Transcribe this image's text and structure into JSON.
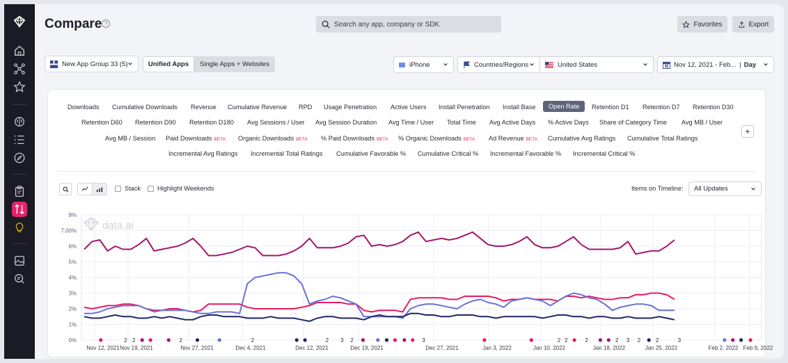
{
  "header": {
    "title": "Compare",
    "search_placeholder": "Search any app, company or SDK",
    "favorites_label": "Favorites",
    "export_label": "Export"
  },
  "filters": {
    "app_group": "New App Group 33 (5)",
    "unified_apps": "Unified Apps",
    "single_apps": "Single Apps + Websites",
    "device": "iPhone",
    "countries_label": "Countries/Regions",
    "country": "United States",
    "date_range": "Nov 12, 2021 - Feb...",
    "granularity": "Day"
  },
  "metrics": {
    "row1": [
      "Downloads",
      "Cumulative Downloads",
      "Revenue",
      "Cumulative Revenue",
      "RPD",
      "Usage Penetration",
      "Active Users",
      "Install Penetration",
      "Install Base",
      "Open Rate",
      "Retention D1",
      "Retention D7",
      "Retention D30"
    ],
    "row2": [
      "Retention D60",
      "Retention D90",
      "Retention D180",
      "Avg Sessions / User",
      "Avg Session Duration",
      "Avg Time / User",
      "Total Time",
      "Avg Active Days",
      "% Active Days",
      "Share of Category Time",
      "Avg MB / User"
    ],
    "row3": [
      "Avg MB / Session",
      "Paid Downloads",
      "Organic Downloads",
      "% Paid Downloads",
      "% Organic Downloads",
      "Ad Revenue",
      "Cumulative Avg Ratings",
      "Cumulative Total Ratings"
    ],
    "row4": [
      "Incremental Avg Ratings",
      "Incremental Total Ratings",
      "Cumulative Favorable %",
      "Cumulative Critical %",
      "Incremental Favorable %",
      "Incremental Critical %"
    ],
    "beta_label": "BETA",
    "active": "Open Rate",
    "plus": "+"
  },
  "toolbar": {
    "stack_label": "Stack",
    "highlight_label": "Highlight Weekends",
    "items_on_timeline_label": "Items on Timeline:",
    "items_on_timeline_value": "All Updates"
  },
  "chart_data": {
    "type": "line",
    "watermark": "data.ai",
    "y_ticks": [
      "0%",
      "1%",
      "2%",
      "3%",
      "4%",
      "5%",
      "6%",
      "7.00%",
      "8%"
    ],
    "ylim": [
      0,
      8
    ],
    "x_labels": [
      "Nov 12, 2021",
      "Nov 19, 2021",
      "Nov 27, 2021",
      "Dec 4, 2021",
      "Dec 12, 2021",
      "Dec 19, 2021",
      "Dec 27, 2021",
      "Jan 3, 2022",
      "Jan 10, 2022",
      "Jan 18, 2022",
      "Jan 25, 2022",
      "Feb 2, 2022",
      "Feb 9, 2022"
    ],
    "colors": {
      "purple": "#a3146e",
      "pink": "#e8195f",
      "blue": "#6671d8",
      "navy": "#1f2566"
    },
    "series": [
      {
        "color": "#a3146e",
        "values": [
          5.8,
          6.3,
          6.4,
          5.7,
          6.0,
          5.8,
          5.8,
          6.1,
          6.5,
          5.7,
          5.8,
          5.9,
          6.0,
          6.2,
          6.5,
          6.0,
          5.4,
          5.4,
          5.5,
          5.6,
          5.8,
          6.0,
          5.9,
          5.4,
          5.4,
          5.4,
          5.5,
          5.7,
          6.0,
          6.5,
          5.9,
          5.9,
          5.9,
          6.0,
          6.2,
          6.6,
          6.7,
          6.0,
          6.1,
          6.0,
          6.1,
          6.3,
          6.7,
          6.9,
          6.3,
          6.4,
          6.5,
          6.4,
          6.5,
          6.7,
          6.9,
          6.5,
          6.1,
          6.0,
          6.0,
          6.1,
          6.3,
          6.6,
          6.1,
          5.9,
          5.9,
          6.0,
          6.3,
          6.6,
          6.1,
          5.8,
          5.8,
          5.8,
          5.8,
          5.9,
          6.3,
          5.5,
          5.6,
          5.7,
          5.7,
          6.0,
          6.4
        ]
      },
      {
        "color": "#e8195f",
        "values": [
          2.1,
          2.0,
          2.1,
          2.2,
          2.2,
          2.3,
          2.3,
          2.2,
          2.0,
          1.9,
          1.9,
          2.0,
          2.0,
          1.9,
          1.8,
          1.9,
          2.3,
          2.3,
          2.3,
          2.3,
          2.3,
          2.1,
          2.0,
          2.0,
          2.0,
          2.0,
          2.0,
          2.0,
          2.1,
          2.2,
          2.4,
          2.4,
          2.4,
          2.4,
          2.3,
          2.3,
          1.9,
          1.8,
          1.9,
          1.9,
          1.9,
          1.8,
          2.6,
          2.7,
          2.7,
          2.7,
          2.7,
          2.6,
          2.6,
          2.8,
          2.8,
          2.8,
          2.8,
          2.7,
          2.5,
          2.6,
          2.6,
          2.7,
          2.6,
          2.6,
          2.6,
          2.5,
          2.8,
          2.8,
          2.7,
          2.8,
          2.7,
          2.6,
          2.6,
          2.7,
          2.7,
          2.9,
          2.9,
          3.0,
          3.0,
          2.9,
          2.6
        ]
      },
      {
        "color": "#6671d8",
        "values": [
          1.7,
          1.7,
          1.8,
          2.0,
          2.1,
          2.2,
          2.2,
          2.2,
          2.0,
          1.8,
          1.9,
          1.9,
          1.9,
          1.9,
          1.8,
          1.7,
          1.7,
          1.8,
          1.8,
          1.8,
          1.7,
          3.6,
          4.0,
          4.1,
          4.2,
          4.3,
          4.3,
          4.1,
          3.6,
          2.3,
          2.5,
          2.6,
          2.8,
          2.7,
          2.5,
          2.3,
          1.5,
          1.5,
          1.5,
          1.5,
          1.5,
          1.4,
          2.0,
          2.2,
          2.3,
          2.3,
          2.2,
          2.1,
          2.0,
          2.3,
          2.5,
          2.6,
          2.4,
          2.3,
          2.1,
          2.5,
          2.6,
          2.7,
          2.6,
          2.5,
          2.2,
          2.5,
          2.8,
          3.0,
          2.9,
          2.7,
          2.6,
          2.3,
          1.9,
          2.1,
          2.2,
          2.3,
          2.3,
          2.2,
          1.9,
          1.9,
          1.9
        ]
      },
      {
        "color": "#1f2566",
        "values": [
          1.5,
          1.4,
          1.4,
          1.5,
          1.6,
          1.5,
          1.5,
          1.4,
          1.4,
          1.5,
          1.4,
          1.5,
          1.4,
          1.3,
          1.3,
          1.5,
          1.6,
          1.6,
          1.5,
          1.5,
          1.5,
          1.4,
          1.4,
          1.4,
          1.5,
          1.4,
          1.4,
          1.4,
          1.3,
          1.2,
          1.4,
          1.5,
          1.5,
          1.4,
          1.4,
          1.4,
          1.3,
          1.5,
          1.6,
          1.5,
          1.5,
          1.5,
          1.7,
          1.7,
          1.6,
          1.6,
          1.5,
          1.5,
          1.6,
          1.6,
          1.6,
          1.5,
          1.5,
          1.4,
          1.5,
          1.5,
          1.5,
          1.5,
          1.5,
          1.4,
          1.5,
          1.6,
          1.6,
          1.5,
          1.5,
          1.4,
          1.5,
          1.5,
          1.4,
          1.4,
          1.5,
          1.4,
          1.4,
          1.4,
          1.5,
          1.4,
          1.3
        ]
      }
    ],
    "markers": [
      {
        "x": 0.035,
        "color": "#e8195f"
      },
      {
        "x": 0.08,
        "text": "2"
      },
      {
        "x": 0.095,
        "text": "2"
      },
      {
        "x": 0.11,
        "color": "#a3146e"
      },
      {
        "x": 0.125,
        "color": "#e8195f"
      },
      {
        "x": 0.158,
        "color": "#a3146e"
      },
      {
        "x": 0.18,
        "text": "2"
      },
      {
        "x": 0.21,
        "color": "#1f2566"
      },
      {
        "x": 0.25,
        "color": "#6671d8"
      },
      {
        "x": 0.31,
        "text": "2"
      },
      {
        "x": 0.39,
        "color": "#1f2566"
      },
      {
        "x": 0.405,
        "color": "#1f2566"
      },
      {
        "x": 0.445,
        "text": "2"
      },
      {
        "x": 0.472,
        "text": "3"
      },
      {
        "x": 0.49,
        "text": "2"
      },
      {
        "x": 0.51,
        "color": "#a3146e"
      },
      {
        "x": 0.537,
        "color": "#6671d8"
      },
      {
        "x": 0.553,
        "color": "#1f2566"
      },
      {
        "x": 0.568,
        "color": "#e8195f"
      },
      {
        "x": 0.585,
        "color": "#a3146e"
      },
      {
        "x": 0.6,
        "color": "#e8195f"
      },
      {
        "x": 0.62,
        "text": "3"
      },
      {
        "x": 0.73,
        "color": "#e8195f"
      },
      {
        "x": 0.815,
        "color": "#e8195f"
      },
      {
        "x": 0.865,
        "text": "2"
      },
      {
        "x": 0.878,
        "text": "2"
      },
      {
        "x": 0.893,
        "color": "#e8195f"
      },
      {
        "x": 0.915,
        "text": "2"
      },
      {
        "x": 0.94,
        "color": "#a3146e"
      },
      {
        "x": 0.955,
        "color": "#a3146e"
      },
      {
        "x": 0.97,
        "text": "2"
      },
      {
        "x": 0.99,
        "text": "3"
      },
      {
        "x": 1.01,
        "text": "2"
      },
      {
        "x": 1.028,
        "color": "#1f2566"
      },
      {
        "x": 1.043,
        "text": "2"
      },
      {
        "x": 1.083,
        "text": "3"
      },
      {
        "x": 1.165,
        "color": "#6671d8"
      },
      {
        "x": 1.18,
        "color": "#a3146e"
      },
      {
        "x": 1.195,
        "color": "#1f2566"
      },
      {
        "x": 1.212,
        "color": "#e8195f"
      }
    ]
  }
}
